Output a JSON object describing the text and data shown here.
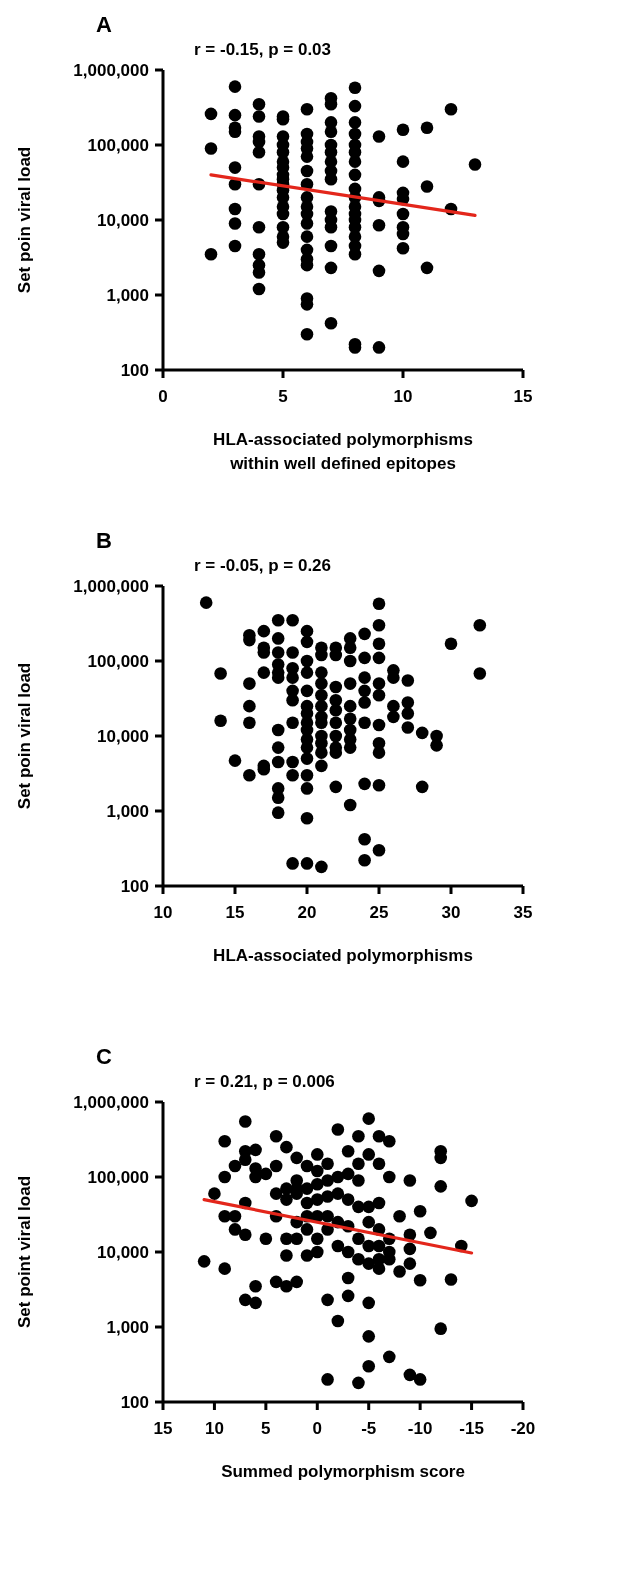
{
  "chart_data": [
    {
      "type": "scatter",
      "title": "A",
      "annotations": [
        "r = -0.15, p = 0.03"
      ],
      "xlabel": "HLA-associated polymorphisms\nwithin well defined epitopes",
      "ylabel": "Set poin viral load",
      "log": "y",
      "marker": "circle",
      "xlim": [
        0,
        15
      ],
      "xticks": [
        0,
        5,
        10,
        15
      ],
      "ylim": [
        100,
        1000000
      ],
      "yticks": [
        {
          "value": 100,
          "label": "100"
        },
        {
          "value": 1000,
          "label": "1,000"
        },
        {
          "value": 10000,
          "label": "10,000"
        },
        {
          "value": 100000,
          "label": "100,000"
        },
        {
          "value": 1000000,
          "label": "1,000,000"
        }
      ],
      "series": [
        {
          "color": "#000000",
          "x": [
            2,
            2,
            2,
            3,
            3,
            3,
            3,
            3,
            3,
            3,
            3,
            3,
            4,
            4,
            4,
            4,
            4,
            4,
            4,
            4,
            4,
            4,
            4,
            5,
            5,
            5,
            5,
            5,
            5,
            5,
            5,
            5,
            5,
            5,
            5,
            5,
            5,
            5,
            5,
            5,
            6,
            6,
            6,
            6,
            6,
            6,
            6,
            6,
            6,
            6,
            6,
            6,
            6,
            6,
            6,
            6,
            6,
            6,
            7,
            7,
            7,
            7,
            7,
            7,
            7,
            7,
            7,
            7,
            7,
            7,
            7,
            7,
            7,
            8,
            8,
            8,
            8,
            8,
            8,
            8,
            8,
            8,
            8,
            8,
            8,
            8,
            8,
            8,
            8,
            8,
            8,
            8,
            9,
            9,
            9,
            9,
            9,
            9,
            10,
            10,
            10,
            10,
            10,
            10,
            10,
            10,
            11,
            11,
            11,
            12,
            12,
            13
          ],
          "values": [
            260000,
            90000,
            3500,
            600000,
            250000,
            170000,
            150000,
            50000,
            30000,
            14000,
            9000,
            4500,
            350000,
            240000,
            130000,
            110000,
            80000,
            30000,
            8000,
            3500,
            2500,
            2000,
            1200,
            240000,
            220000,
            130000,
            100000,
            80000,
            60000,
            50000,
            40000,
            35000,
            30000,
            25000,
            20000,
            15000,
            12000,
            8000,
            6000,
            5000,
            300000,
            140000,
            110000,
            90000,
            70000,
            45000,
            30000,
            20000,
            15000,
            12000,
            9000,
            6000,
            4000,
            3000,
            2500,
            900,
            750,
            300,
            420000,
            350000,
            200000,
            150000,
            100000,
            80000,
            60000,
            45000,
            35000,
            13000,
            10000,
            8000,
            4500,
            2300,
            420,
            580000,
            330000,
            200000,
            140000,
            100000,
            80000,
            60000,
            40000,
            26000,
            20000,
            15000,
            12000,
            10000,
            8000,
            6000,
            4500,
            3500,
            220,
            200,
            130000,
            20000,
            18000,
            8500,
            2100,
            200,
            160000,
            60000,
            23000,
            19000,
            12000,
            8000,
            6500,
            4200,
            170000,
            28000,
            2300,
            300000,
            14000,
            55000
          ]
        },
        {
          "type": "line",
          "marker": "none",
          "color": "#e3261b",
          "x": [
            2,
            13
          ],
          "values": [
            40000,
            11500
          ]
        }
      ]
    },
    {
      "type": "scatter",
      "title": "B",
      "annotations": [
        "r = -0.05, p = 0.26"
      ],
      "xlabel": "HLA-associated polymorphisms",
      "ylabel": "Set poin viral load",
      "log": "y",
      "marker": "circle",
      "xlim": [
        10,
        35
      ],
      "xticks": [
        10,
        15,
        20,
        25,
        30,
        35
      ],
      "ylim": [
        100,
        1000000
      ],
      "yticks": [
        {
          "value": 100,
          "label": "100"
        },
        {
          "value": 1000,
          "label": "1,000"
        },
        {
          "value": 10000,
          "label": "10,000"
        },
        {
          "value": 100000,
          "label": "100,000"
        },
        {
          "value": 1000000,
          "label": "1,000,000"
        }
      ],
      "series": [
        {
          "color": "#000000",
          "x": [
            13,
            14,
            14,
            15,
            16,
            16,
            16,
            16,
            16,
            16,
            17,
            17,
            17,
            17,
            17,
            17,
            18,
            18,
            18,
            18,
            18,
            18,
            18,
            18,
            18,
            18,
            18,
            18,
            19,
            19,
            19,
            19,
            19,
            19,
            19,
            19,
            19,
            19,
            20,
            20,
            20,
            20,
            20,
            20,
            20,
            20,
            20,
            20,
            20,
            20,
            20,
            20,
            20,
            20,
            21,
            21,
            21,
            21,
            21,
            21,
            21,
            21,
            21,
            21,
            21,
            21,
            21,
            22,
            22,
            22,
            22,
            22,
            22,
            22,
            22,
            22,
            22,
            23,
            23,
            23,
            23,
            23,
            23,
            23,
            23,
            23,
            23,
            24,
            24,
            24,
            24,
            24,
            24,
            24,
            24,
            24,
            25,
            25,
            25,
            25,
            25,
            25,
            25,
            25,
            25,
            25,
            25,
            26,
            26,
            26,
            26,
            27,
            27,
            27,
            27,
            28,
            28,
            29,
            29,
            30,
            32,
            32
          ],
          "values": [
            600000,
            68000,
            16000,
            4700,
            220000,
            190000,
            50000,
            25000,
            15000,
            3000,
            250000,
            150000,
            130000,
            70000,
            4000,
            3600,
            350000,
            200000,
            130000,
            90000,
            70000,
            60000,
            12000,
            7000,
            4500,
            2000,
            950,
            1500,
            350000,
            130000,
            80000,
            60000,
            40000,
            30000,
            15000,
            4500,
            3000,
            200,
            250000,
            180000,
            100000,
            70000,
            40000,
            25000,
            20000,
            15000,
            12000,
            9000,
            7000,
            5000,
            3000,
            2000,
            800,
            200,
            150000,
            120000,
            70000,
            50000,
            35000,
            25000,
            18000,
            15000,
            10000,
            8000,
            6000,
            4000,
            180,
            150000,
            120000,
            45000,
            30000,
            22000,
            15000,
            10000,
            7000,
            6000,
            2100,
            200000,
            150000,
            100000,
            50000,
            25000,
            17000,
            12000,
            9000,
            7000,
            1200,
            230000,
            110000,
            60000,
            40000,
            28000,
            15000,
            2300,
            420,
            220,
            580000,
            300000,
            170000,
            110000,
            50000,
            35000,
            14000,
            8000,
            6000,
            2200,
            300,
            75000,
            60000,
            25000,
            18000,
            55000,
            28000,
            20000,
            13000,
            11000,
            2100,
            10000,
            7500,
            170000,
            300000,
            68000
          ]
        }
      ]
    },
    {
      "type": "scatter",
      "title": "C",
      "annotations": [
        "r = 0.21, p = 0.006"
      ],
      "xlabel": "Summed polymorphism score",
      "ylabel": "Set point viral load",
      "log": "y",
      "marker": "circle",
      "xlim": [
        15,
        -20
      ],
      "xticks": [
        15,
        10,
        5,
        0,
        -5,
        -10,
        -15,
        -20
      ],
      "ylim": [
        100,
        1000000
      ],
      "yticks": [
        {
          "value": 100,
          "label": "100"
        },
        {
          "value": 1000,
          "label": "1,000"
        },
        {
          "value": 10000,
          "label": "10,000"
        },
        {
          "value": 100000,
          "label": "100,000"
        },
        {
          "value": 1000000,
          "label": "1,000,000"
        }
      ],
      "series": [
        {
          "color": "#000000",
          "x": [
            11,
            10,
            9,
            9,
            9,
            9,
            8,
            8,
            8,
            7,
            7,
            7,
            7,
            7,
            7,
            6,
            6,
            6,
            6,
            6,
            5,
            5,
            4,
            4,
            4,
            4,
            4,
            3,
            3,
            3,
            3,
            3,
            3,
            2,
            2,
            2,
            2,
            2,
            2,
            2,
            1,
            1,
            1,
            1,
            1,
            1,
            0,
            0,
            0,
            0,
            0,
            0,
            0,
            -1,
            -1,
            -1,
            -1,
            -1,
            -1,
            -1,
            -2,
            -2,
            -2,
            -2,
            -2,
            -2,
            -3,
            -3,
            -3,
            -3,
            -3,
            -3,
            -3,
            -4,
            -4,
            -4,
            -4,
            -4,
            -4,
            -4,
            -5,
            -5,
            -5,
            -5,
            -5,
            -5,
            -5,
            -5,
            -5,
            -6,
            -6,
            -6,
            -6,
            -6,
            -6,
            -6,
            -7,
            -7,
            -7,
            -7,
            -7,
            -7,
            -8,
            -8,
            -9,
            -9,
            -9,
            -9,
            -9,
            -10,
            -10,
            -10,
            -11,
            -12,
            -12,
            -12,
            -12,
            -13,
            -14,
            -15
          ],
          "values": [
            7500,
            60000,
            300000,
            100000,
            30000,
            6000,
            140000,
            30000,
            20000,
            550000,
            220000,
            170000,
            45000,
            17000,
            2300,
            230000,
            130000,
            100000,
            2100,
            3500,
            110000,
            15000,
            350000,
            140000,
            60000,
            30000,
            4000,
            250000,
            70000,
            50000,
            15000,
            9000,
            3500,
            180000,
            90000,
            70000,
            60000,
            25000,
            15000,
            4000,
            140000,
            70000,
            45000,
            30000,
            20000,
            9000,
            200000,
            120000,
            80000,
            50000,
            30000,
            15000,
            10000,
            150000,
            90000,
            55000,
            30000,
            20000,
            2300,
            200,
            430000,
            100000,
            60000,
            25000,
            12000,
            1200,
            220000,
            110000,
            50000,
            22000,
            10000,
            4500,
            2600,
            350000,
            150000,
            90000,
            40000,
            15000,
            8000,
            180,
            600000,
            200000,
            40000,
            25000,
            12000,
            7000,
            2100,
            750,
            300,
            350000,
            150000,
            45000,
            20000,
            12000,
            8000,
            6000,
            300000,
            100000,
            15000,
            10000,
            8000,
            400,
            30000,
            5500,
            90000,
            17000,
            11000,
            7000,
            230,
            35000,
            4200,
            200,
            18000,
            180000,
            220000,
            75000,
            950,
            4300,
            12000,
            48000
          ]
        },
        {
          "type": "line",
          "marker": "none",
          "color": "#e3261b",
          "x": [
            11,
            -15
          ],
          "values": [
            50000,
            9700
          ]
        }
      ]
    }
  ]
}
